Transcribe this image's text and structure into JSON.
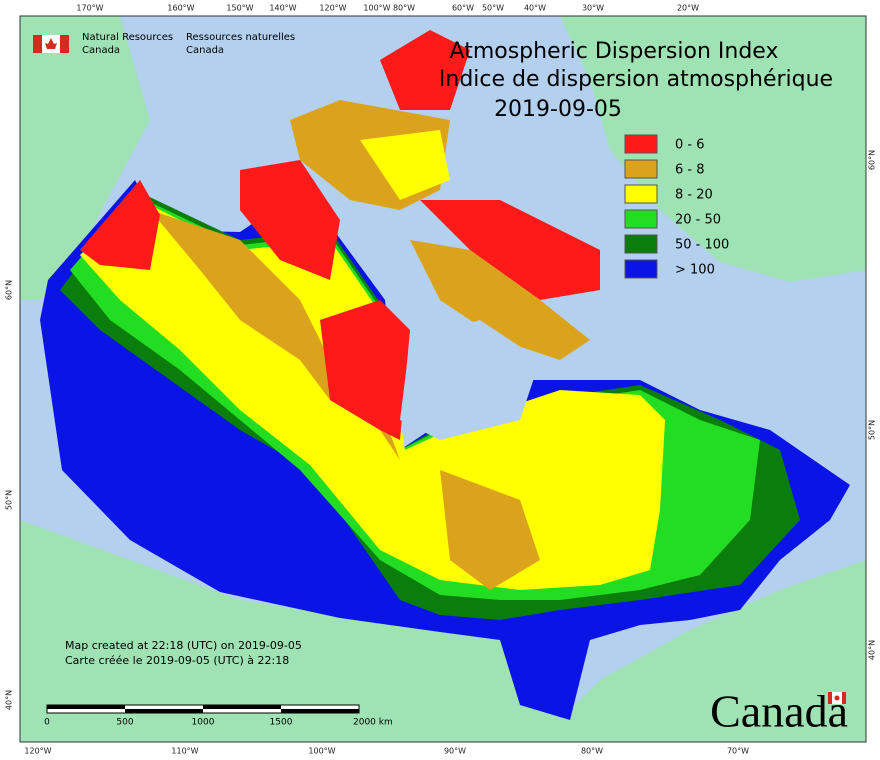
{
  "header": {
    "org_en": [
      "Natural Resources",
      "Canada"
    ],
    "org_fr": [
      "Ressources naturelles",
      "Canada"
    ]
  },
  "title": {
    "en": "Atmospheric Dispersion Index",
    "fr": "Indice de dispersion atmosphérique",
    "date": "2019-09-05"
  },
  "legend": [
    {
      "label": "0 - 6",
      "color": "#ff1a1a"
    },
    {
      "label": "6 - 8",
      "color": "#dba31c"
    },
    {
      "label": "8 - 20",
      "color": "#ffff00"
    },
    {
      "label": "20 - 50",
      "color": "#22dd22"
    },
    {
      "label": "50 - 100",
      "color": "#0a7d0a"
    },
    {
      "label": "> 100",
      "color": "#0a14e6"
    }
  ],
  "graticule": {
    "top": [
      "170°W",
      "160°W",
      "150°W",
      "140°W",
      "120°W",
      "100°W",
      "80°W",
      "60°W",
      "50°W",
      "40°W",
      "30°W",
      "20°W"
    ],
    "bottom": [
      "120°W",
      "110°W",
      "100°W",
      "90°W",
      "80°W",
      "70°W"
    ],
    "left": [
      "60°N",
      "50°N",
      "40°N"
    ],
    "right": [
      "60°N",
      "50°N",
      "40°N"
    ]
  },
  "scale_bar": [
    "0",
    "500",
    "1000",
    "1500",
    "2000 km"
  ],
  "footnote": [
    "Map created at 22:18 (UTC) on 2019-09-05",
    "Carte créée le 2019-09-05 (UTC) à 22:18"
  ],
  "wordmark": "Canada"
}
